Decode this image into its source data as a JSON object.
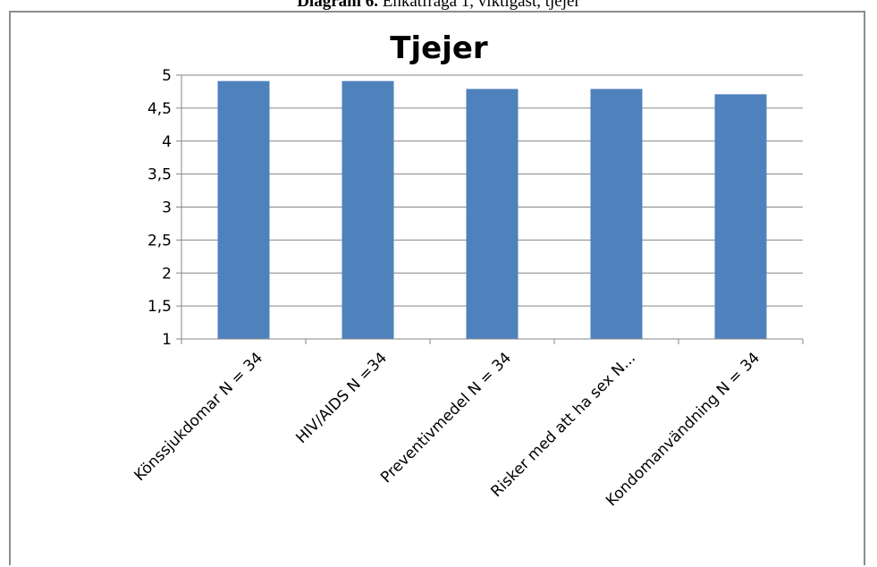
{
  "caption": {
    "label": "Diagram 6.",
    "text": " Enkätfråga 1, viktigast, tjejer"
  },
  "chart_data": {
    "type": "bar",
    "title": "Tjejer",
    "categories": [
      "Könssjukdomar N = 34",
      "HIV/AIDS N =34",
      "Preventivmedel N = 34",
      "Risker med att ha sex N...",
      "Kondomanvändning N = 34"
    ],
    "values": [
      4.91,
      4.91,
      4.79,
      4.79,
      4.71
    ],
    "ylim": [
      1,
      5
    ],
    "yticks": [
      "1",
      "1,5",
      "2",
      "2,5",
      "3",
      "3,5",
      "4",
      "4,5",
      "5"
    ],
    "grid": true,
    "legend": "none",
    "bar_color": "#4f81bd",
    "grid_color": "#868686"
  }
}
